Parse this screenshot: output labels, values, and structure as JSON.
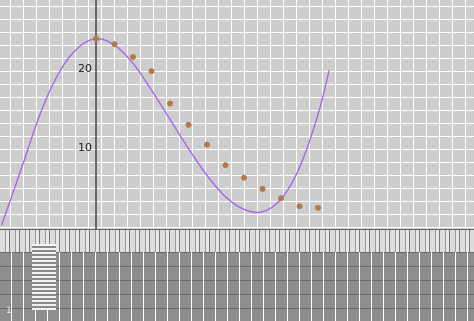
{
  "chart_data": {
    "type": "scatter",
    "title": "",
    "xlabel": "",
    "ylabel": "",
    "y_ticks": [
      "10",
      "20"
    ],
    "ylim": [
      -2.5,
      30
    ],
    "xlim": [
      -2.55,
      6.3
    ],
    "grid": true,
    "series": [
      {
        "kind": "curve",
        "color": "#a45ff0",
        "x": [
          -2.55,
          -2.0,
          -1.5,
          -1.0,
          -0.5,
          0.0,
          0.5,
          1.0,
          1.5,
          2.0,
          2.5,
          3.0,
          3.5,
          4.0,
          4.5,
          5.0,
          5.5,
          6.0,
          6.3
        ],
        "y": [
          0.1,
          7.5,
          14.3,
          19.4,
          22.5,
          23.7,
          22.9,
          20.6,
          17.2,
          13.5,
          9.8,
          6.4,
          3.7,
          2.1,
          1.8,
          3.4,
          7.4,
          14.1,
          19.7
        ]
      },
      {
        "kind": "points",
        "color": "#b07a4a",
        "x": [
          0.0,
          0.5,
          1.0,
          1.5,
          2.0,
          2.5,
          3.0,
          3.5,
          4.0,
          4.5,
          5.0,
          5.5,
          6.0
        ],
        "y": [
          23.7,
          23.0,
          21.4,
          19.6,
          15.5,
          12.8,
          10.3,
          7.7,
          6.1,
          4.7,
          3.5,
          2.5,
          2.3
        ]
      }
    ]
  },
  "corner_mark": "1",
  "colors": {
    "grid": "#ffffff",
    "axis": "#000000",
    "curve": "#a45ff0",
    "points": "#b07a4a"
  }
}
